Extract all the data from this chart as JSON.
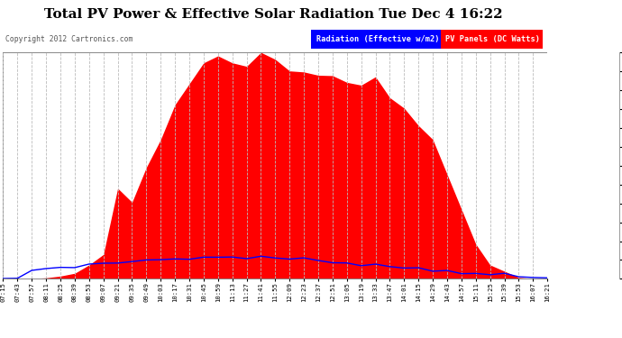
{
  "title": "Total PV Power & Effective Solar Radiation Tue Dec 4 16:22",
  "copyright": "Copyright 2012 Cartronics.com",
  "legend_label1": "Radiation (Effective w/m2)",
  "legend_label2": "PV Panels (DC Watts)",
  "legend_color1": "#0000ff",
  "legend_color2": "#ff0000",
  "y_max": 3249.6,
  "y_min": 0.0,
  "y_tick_step": 270.8,
  "background_color": "#ffffff",
  "plot_bg_color": "#ffffff",
  "grid_color": "#bbbbbb",
  "pv_color": "#ff0000",
  "radiation_color": "#0000ff",
  "title_fontsize": 11,
  "x_labels": [
    "07:15",
    "07:43",
    "07:57",
    "08:11",
    "08:25",
    "08:39",
    "08:53",
    "09:07",
    "09:21",
    "09:35",
    "09:49",
    "10:03",
    "10:17",
    "10:31",
    "10:45",
    "10:59",
    "11:13",
    "11:27",
    "11:41",
    "11:55",
    "12:09",
    "12:23",
    "12:37",
    "12:51",
    "13:05",
    "13:19",
    "13:33",
    "13:47",
    "14:01",
    "14:15",
    "14:29",
    "14:43",
    "14:57",
    "15:11",
    "15:25",
    "15:39",
    "15:53",
    "16:07",
    "16:21"
  ]
}
